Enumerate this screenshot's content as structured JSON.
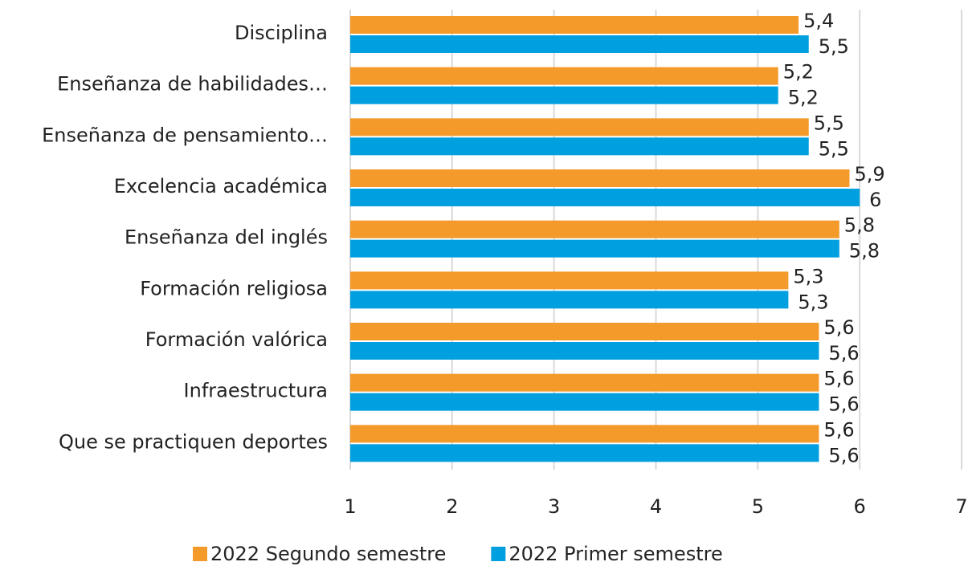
{
  "chart_data": {
    "type": "hbar",
    "categories": [
      "Disciplina",
      "Enseñanza de habilidades…",
      "Enseñanza de pensamiento…",
      "Excelencia académica",
      "Enseñanza del inglés",
      "Formación religiosa",
      "Formación valórica",
      "Infraestructura",
      "Que se practiquen deportes"
    ],
    "series": [
      {
        "name": "2022 Segundo semestre",
        "color": "#f39a2b",
        "values": [
          5.4,
          5.2,
          5.5,
          5.9,
          5.8,
          5.3,
          5.6,
          5.6,
          5.6
        ],
        "value_labels": [
          "5,4",
          "5,2",
          "5,5",
          "5,9",
          "5,8",
          "5,3",
          "5,6",
          "5,6",
          "5,6"
        ]
      },
      {
        "name": "2022 Primer semestre",
        "color": "#00a0e0",
        "values": [
          5.5,
          5.2,
          5.5,
          6,
          5.8,
          5.3,
          5.6,
          5.6,
          5.6
        ],
        "value_labels": [
          "5,5",
          "5,2",
          "5,5",
          "6",
          "5,8",
          "5,3",
          "5,6",
          "5,6",
          "5,6"
        ]
      }
    ],
    "xlim": [
      1,
      7
    ],
    "xticks": [
      1,
      2,
      3,
      4,
      5,
      6,
      7
    ],
    "grid": true,
    "legend": "bottom"
  }
}
